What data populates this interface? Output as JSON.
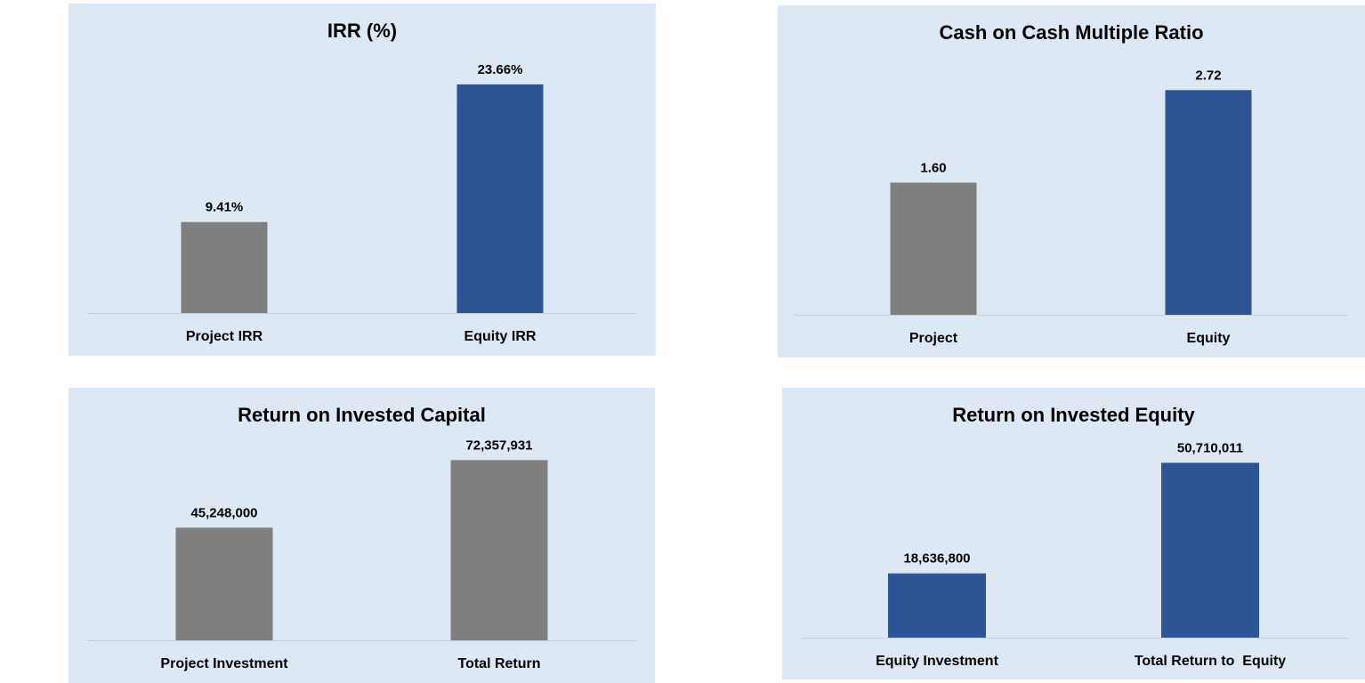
{
  "colors": {
    "panel_background": "#dde8f5",
    "grey_bar": "#7f7f7f",
    "blue_bar": "#2e5596",
    "axis_line": "#c8ced6"
  },
  "chart_data": [
    {
      "type": "bar",
      "title": "IRR (%)",
      "categories": [
        "Project IRR",
        "Equity IRR"
      ],
      "values": [
        9.41,
        23.66
      ],
      "data_labels": [
        "9.41%",
        "23.66%"
      ],
      "bar_colors": [
        "#7f7f7f",
        "#2e5596"
      ],
      "xlabel": "",
      "ylabel": "",
      "ylim": [
        0,
        26.5
      ],
      "grid": false,
      "legend": "none"
    },
    {
      "type": "bar",
      "title": "Cash on Cash Multiple Ratio",
      "categories": [
        "Project",
        "Equity"
      ],
      "values": [
        1.6,
        2.72
      ],
      "data_labels": [
        "1.60",
        "2.72"
      ],
      "bar_colors": [
        "#7f7f7f",
        "#2e5596"
      ],
      "xlabel": "",
      "ylabel": "",
      "ylim": [
        0,
        3.1
      ],
      "grid": false,
      "legend": "none"
    },
    {
      "type": "bar",
      "title": "Return on Invested Capital",
      "categories": [
        "Project Investment",
        "Total Return"
      ],
      "values": [
        45248000,
        72357931
      ],
      "data_labels": [
        "45,248,000",
        "72,357,931"
      ],
      "bar_colors": [
        "#7f7f7f",
        "#7f7f7f"
      ],
      "xlabel": "",
      "ylabel": "",
      "ylim": [
        0,
        80000000
      ],
      "grid": false,
      "legend": "none"
    },
    {
      "type": "bar",
      "title": "Return on Invested Equity",
      "categories": [
        "Equity Investment",
        "Total Return to  Equity"
      ],
      "values": [
        18636800,
        50710011
      ],
      "data_labels": [
        "18,636,800",
        "50,710,011"
      ],
      "bar_colors": [
        "#2e5596",
        "#2e5596"
      ],
      "xlabel": "",
      "ylabel": "",
      "ylim": [
        0,
        57000000
      ],
      "grid": false,
      "legend": "none"
    }
  ]
}
